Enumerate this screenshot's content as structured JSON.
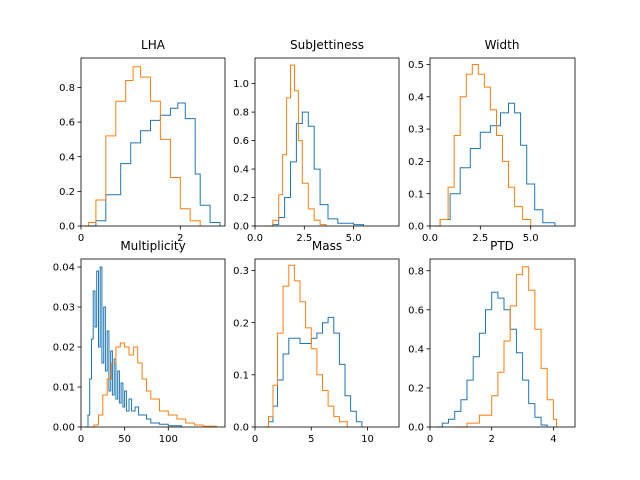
{
  "colors": {
    "series_a": "#1f77b4",
    "series_b": "#ff7f0e"
  },
  "chart_data": [
    {
      "type": "histogram-step",
      "title": "LHA",
      "xlim": [
        0,
        2.9
      ],
      "ylim": [
        0,
        0.97
      ],
      "xticks": [
        0,
        2
      ],
      "xtick_labels": [
        "0",
        "2"
      ],
      "yticks": [
        0,
        0.2,
        0.4,
        0.6,
        0.8
      ],
      "ytick_labels": [
        "0.0",
        "0.2",
        "0.4",
        "0.6",
        "0.8"
      ],
      "series": [
        {
          "color": "#1f77b4",
          "x": [
            0.05,
            0.1,
            0.3,
            0.5,
            0.8,
            1.0,
            1.2,
            1.4,
            1.6,
            1.8,
            1.95,
            2.1,
            2.3,
            2.4,
            2.6,
            2.8
          ],
          "y": [
            0,
            0,
            0.03,
            0.18,
            0.36,
            0.48,
            0.55,
            0.61,
            0.64,
            0.68,
            0.71,
            0.62,
            0.3,
            0.12,
            0.02,
            0
          ]
        },
        {
          "color": "#ff7f0e",
          "x": [
            0.05,
            0.15,
            0.3,
            0.5,
            0.7,
            0.9,
            1.05,
            1.2,
            1.4,
            1.6,
            1.8,
            2.0,
            2.2,
            2.4
          ],
          "y": [
            0,
            0.02,
            0.15,
            0.52,
            0.72,
            0.84,
            0.92,
            0.86,
            0.72,
            0.5,
            0.28,
            0.1,
            0.03,
            0
          ]
        }
      ]
    },
    {
      "type": "histogram-step",
      "title": "SubJettiness",
      "xlim": [
        0,
        7.3
      ],
      "ylim": [
        0,
        1.18
      ],
      "xticks": [
        0,
        2.5,
        5
      ],
      "xtick_labels": [
        "0.0",
        "2.5",
        "5.0"
      ],
      "yticks": [
        0,
        0.2,
        0.4,
        0.6,
        0.8,
        1.0
      ],
      "ytick_labels": [
        "0.0",
        "0.2",
        "0.4",
        "0.6",
        "0.8",
        "1.0"
      ],
      "series": [
        {
          "color": "#1f77b4",
          "x": [
            0.5,
            0.9,
            1.2,
            1.5,
            1.8,
            2.1,
            2.4,
            2.7,
            3.0,
            3.3,
            3.7,
            4.2,
            5.0,
            5.5
          ],
          "y": [
            0,
            0.01,
            0.06,
            0.2,
            0.45,
            0.72,
            0.8,
            0.7,
            0.4,
            0.15,
            0.05,
            0.02,
            0.01,
            0
          ]
        },
        {
          "color": "#ff7f0e",
          "x": [
            0.5,
            0.9,
            1.2,
            1.4,
            1.6,
            1.8,
            2.0,
            2.2,
            2.4,
            2.7,
            3.0,
            3.3,
            3.6
          ],
          "y": [
            0,
            0.04,
            0.22,
            0.5,
            0.9,
            1.13,
            0.95,
            0.6,
            0.3,
            0.12,
            0.04,
            0.01,
            0
          ]
        }
      ]
    },
    {
      "type": "histogram-step",
      "title": "Width",
      "xlim": [
        0,
        7.2
      ],
      "ylim": [
        0,
        0.52
      ],
      "xticks": [
        0,
        2.5,
        5
      ],
      "xtick_labels": [
        "0.0",
        "2.5",
        "5.0"
      ],
      "yticks": [
        0,
        0.1,
        0.2,
        0.3,
        0.4,
        0.5
      ],
      "ytick_labels": [
        "0.0",
        "0.1",
        "0.2",
        "0.3",
        "0.4",
        "0.5"
      ],
      "series": [
        {
          "color": "#1f77b4",
          "x": [
            0.2,
            0.5,
            1.0,
            1.5,
            2.0,
            2.5,
            3.0,
            3.5,
            3.9,
            4.2,
            4.5,
            4.8,
            5.2,
            5.6,
            6.2
          ],
          "y": [
            0,
            0.02,
            0.1,
            0.18,
            0.24,
            0.29,
            0.31,
            0.35,
            0.38,
            0.35,
            0.25,
            0.13,
            0.05,
            0.01,
            0
          ]
        },
        {
          "color": "#ff7f0e",
          "x": [
            0.2,
            0.5,
            0.9,
            1.2,
            1.5,
            1.8,
            2.1,
            2.4,
            2.7,
            3.0,
            3.3,
            3.6,
            3.9,
            4.2,
            4.6,
            5.0
          ],
          "y": [
            0,
            0.02,
            0.12,
            0.28,
            0.4,
            0.47,
            0.5,
            0.47,
            0.43,
            0.36,
            0.28,
            0.2,
            0.12,
            0.06,
            0.02,
            0
          ]
        }
      ]
    },
    {
      "type": "histogram-step",
      "title": "Multiplicity",
      "xlim": [
        0,
        165
      ],
      "ylim": [
        0,
        0.042
      ],
      "xticks": [
        0,
        50,
        100
      ],
      "xtick_labels": [
        "0",
        "50",
        "100"
      ],
      "yticks": [
        0,
        0.01,
        0.02,
        0.03,
        0.04
      ],
      "ytick_labels": [
        "0.00",
        "0.01",
        "0.02",
        "0.03",
        "0.04"
      ],
      "series": [
        {
          "color": "#1f77b4",
          "x": [
            5,
            8,
            10,
            12,
            14,
            16,
            18,
            20,
            22,
            24,
            26,
            28,
            30,
            32,
            34,
            36,
            38,
            40,
            42,
            44,
            46,
            48,
            50,
            52,
            55,
            58,
            62,
            66,
            70,
            75,
            80,
            90,
            100,
            115
          ],
          "y": [
            0,
            0.003,
            0.012,
            0.022,
            0.034,
            0.025,
            0.039,
            0.02,
            0.04,
            0.016,
            0.03,
            0.014,
            0.024,
            0.009,
            0.019,
            0.008,
            0.017,
            0.007,
            0.014,
            0.006,
            0.011,
            0.005,
            0.009,
            0.004,
            0.007,
            0.004,
            0.005,
            0.003,
            0.003,
            0.002,
            0.001,
            0.0007,
            0.0003,
            0
          ]
        },
        {
          "color": "#ff7f0e",
          "x": [
            10,
            15,
            20,
            25,
            30,
            35,
            40,
            45,
            50,
            55,
            60,
            65,
            70,
            75,
            80,
            90,
            100,
            110,
            120,
            130,
            140,
            155
          ],
          "y": [
            0,
            0.0005,
            0.003,
            0.008,
            0.012,
            0.016,
            0.02,
            0.021,
            0.02,
            0.018,
            0.02,
            0.016,
            0.012,
            0.009,
            0.007,
            0.004,
            0.003,
            0.002,
            0.001,
            0.0005,
            0.0002,
            0
          ]
        }
      ]
    },
    {
      "type": "histogram-step",
      "title": "Mass",
      "xlim": [
        0,
        12.8
      ],
      "ylim": [
        0,
        0.322
      ],
      "xticks": [
        0,
        5,
        10
      ],
      "xtick_labels": [
        "0",
        "5",
        "10"
      ],
      "yticks": [
        0,
        0.1,
        0.2,
        0.3
      ],
      "ytick_labels": [
        "0.0",
        "0.1",
        "0.2",
        "0.3"
      ],
      "series": [
        {
          "color": "#1f77b4",
          "x": [
            0.8,
            1.2,
            1.6,
            2.0,
            2.5,
            3.0,
            3.5,
            4.0,
            4.5,
            5.0,
            5.5,
            6.0,
            6.5,
            7.0,
            7.5,
            8.0,
            8.5,
            9.0,
            9.5
          ],
          "y": [
            0,
            0.01,
            0.04,
            0.09,
            0.14,
            0.17,
            0.17,
            0.16,
            0.16,
            0.17,
            0.18,
            0.2,
            0.21,
            0.18,
            0.12,
            0.06,
            0.03,
            0.01,
            0
          ]
        },
        {
          "color": "#ff7f0e",
          "x": [
            0.8,
            1.2,
            1.6,
            2.0,
            2.5,
            3.0,
            3.5,
            4.0,
            4.5,
            5.0,
            5.5,
            6.0,
            6.5,
            7.0,
            7.5,
            8.2
          ],
          "y": [
            0,
            0.02,
            0.08,
            0.18,
            0.27,
            0.31,
            0.28,
            0.24,
            0.19,
            0.15,
            0.1,
            0.07,
            0.04,
            0.02,
            0.01,
            0
          ]
        }
      ]
    },
    {
      "type": "histogram-step",
      "title": "PTD",
      "xlim": [
        0,
        4.7
      ],
      "ylim": [
        0,
        0.86
      ],
      "xticks": [
        0,
        2,
        4
      ],
      "xtick_labels": [
        "0",
        "2",
        "4"
      ],
      "yticks": [
        0,
        0.2,
        0.4,
        0.6,
        0.8
      ],
      "ytick_labels": [
        "0.0",
        "0.2",
        "0.4",
        "0.6",
        "0.8"
      ],
      "series": [
        {
          "color": "#1f77b4",
          "x": [
            0.2,
            0.4,
            0.6,
            0.8,
            1.0,
            1.2,
            1.4,
            1.6,
            1.8,
            2.0,
            2.2,
            2.4,
            2.6,
            2.8,
            3.0,
            3.2,
            3.4,
            3.6,
            3.8
          ],
          "y": [
            0,
            0.02,
            0.04,
            0.08,
            0.14,
            0.24,
            0.36,
            0.48,
            0.6,
            0.69,
            0.66,
            0.6,
            0.5,
            0.38,
            0.24,
            0.12,
            0.05,
            0.01,
            0
          ]
        },
        {
          "color": "#ff7f0e",
          "x": [
            0.8,
            1.2,
            1.6,
            2.0,
            2.2,
            2.4,
            2.6,
            2.8,
            3.0,
            3.2,
            3.4,
            3.6,
            3.8,
            4.0,
            4.1
          ],
          "y": [
            0,
            0.02,
            0.06,
            0.16,
            0.28,
            0.44,
            0.62,
            0.78,
            0.82,
            0.7,
            0.5,
            0.3,
            0.14,
            0.04,
            0
          ]
        }
      ]
    }
  ]
}
